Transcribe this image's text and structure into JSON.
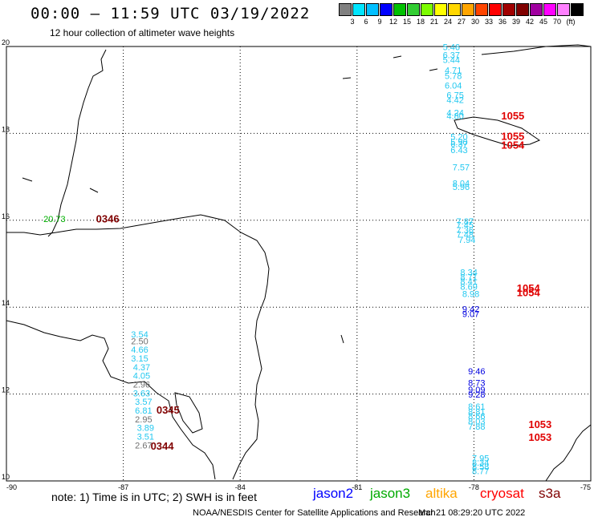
{
  "header": {
    "title": "00:00 – 11:59 UTC 03/19/2022",
    "subtitle": "12 hour collection of altimeter wave heights"
  },
  "legend": {
    "colors": [
      "#808080",
      "#00e5ff",
      "#00bfff",
      "#0000ff",
      "#00c000",
      "#32cd32",
      "#7cfc00",
      "#ffff00",
      "#ffd700",
      "#ffa500",
      "#ff4500",
      "#ff0000",
      "#a00000",
      "#800000",
      "#a000a0",
      "#ff00ff",
      "#ff80ff",
      "#000000"
    ],
    "labels": [
      "3",
      "6",
      "9",
      "12",
      "15",
      "18",
      "21",
      "24",
      "27",
      "30",
      "33",
      "36",
      "39",
      "42",
      "45",
      "70",
      "(ft)"
    ]
  },
  "axes": {
    "lon_ticks": [
      "-90",
      "-87",
      "-84",
      "-81",
      "-78",
      "-75"
    ],
    "lat_ticks": [
      "20",
      "18",
      "16",
      "14",
      "12",
      "10"
    ],
    "lon_range": [
      -90,
      -75
    ],
    "lat_range": [
      10,
      20
    ]
  },
  "observations": [
    {
      "lon": -78.8,
      "lat": 19.92,
      "text": "5.46",
      "color": "#22c8f0"
    },
    {
      "lon": -78.8,
      "lat": 19.73,
      "text": "6.37",
      "color": "#22c8f0"
    },
    {
      "lon": -78.8,
      "lat": 19.62,
      "text": "5.44",
      "color": "#22c8f0"
    },
    {
      "lon": -78.75,
      "lat": 19.38,
      "text": "4.71",
      "color": "#22c8f0"
    },
    {
      "lon": -78.75,
      "lat": 19.25,
      "text": "5.78",
      "color": "#22c8f0"
    },
    {
      "lon": -78.75,
      "lat": 19.03,
      "text": "6.04",
      "color": "#22c8f0"
    },
    {
      "lon": -78.7,
      "lat": 18.81,
      "text": "6.75",
      "color": "#22c8f0"
    },
    {
      "lon": -78.7,
      "lat": 18.7,
      "text": "4.42",
      "color": "#22c8f0"
    },
    {
      "lon": -78.7,
      "lat": 18.4,
      "text": "4.24",
      "color": "#22c8f0"
    },
    {
      "lon": -78.7,
      "lat": 18.33,
      "text": "4.80",
      "color": "#22c8f0"
    },
    {
      "lon": -78.6,
      "lat": 17.85,
      "text": "5.20",
      "color": "#22c8f0"
    },
    {
      "lon": -78.6,
      "lat": 17.73,
      "text": "5.90",
      "color": "#22c8f0"
    },
    {
      "lon": -78.6,
      "lat": 17.68,
      "text": "6.37",
      "color": "#22c8f0"
    },
    {
      "lon": -78.6,
      "lat": 17.55,
      "text": "6.43",
      "color": "#22c8f0"
    },
    {
      "lon": -78.55,
      "lat": 17.15,
      "text": "7.57",
      "color": "#22c8f0"
    },
    {
      "lon": -78.55,
      "lat": 16.78,
      "text": "8.04",
      "color": "#22c8f0"
    },
    {
      "lon": -78.55,
      "lat": 16.7,
      "text": "5.96",
      "color": "#22c8f0"
    },
    {
      "lon": -78.45,
      "lat": 15.9,
      "text": "7.87",
      "color": "#22c8f0"
    },
    {
      "lon": -78.45,
      "lat": 15.82,
      "text": "7.45",
      "color": "#22c8f0"
    },
    {
      "lon": -78.45,
      "lat": 15.7,
      "text": "7.36",
      "color": "#22c8f0"
    },
    {
      "lon": -78.45,
      "lat": 15.6,
      "text": "7.48",
      "color": "#22c8f0"
    },
    {
      "lon": -78.4,
      "lat": 15.48,
      "text": "7.94",
      "color": "#22c8f0"
    },
    {
      "lon": -78.35,
      "lat": 14.73,
      "text": "8.34",
      "color": "#22c8f0"
    },
    {
      "lon": -78.35,
      "lat": 14.62,
      "text": "8.71",
      "color": "#22c8f0"
    },
    {
      "lon": -78.35,
      "lat": 14.52,
      "text": "8.41",
      "color": "#22c8f0"
    },
    {
      "lon": -78.35,
      "lat": 14.4,
      "text": "8.69",
      "color": "#22c8f0"
    },
    {
      "lon": -78.3,
      "lat": 14.23,
      "text": "8.98",
      "color": "#22c8f0"
    },
    {
      "lon": -78.3,
      "lat": 13.88,
      "text": "9.42",
      "color": "#0000e0"
    },
    {
      "lon": -78.3,
      "lat": 13.77,
      "text": "9.07",
      "color": "#0000e0"
    },
    {
      "lon": -78.15,
      "lat": 12.45,
      "text": "9.46",
      "color": "#0000e0"
    },
    {
      "lon": -78.15,
      "lat": 12.19,
      "text": "8.73",
      "color": "#0000e0"
    },
    {
      "lon": -78.15,
      "lat": 12.03,
      "text": "9.09",
      "color": "#0000e0"
    },
    {
      "lon": -78.15,
      "lat": 11.92,
      "text": "9.28",
      "color": "#0000e0"
    },
    {
      "lon": -78.15,
      "lat": 11.64,
      "text": "8.61",
      "color": "#22c8f0"
    },
    {
      "lon": -78.15,
      "lat": 11.52,
      "text": "8.81",
      "color": "#22c8f0"
    },
    {
      "lon": -78.15,
      "lat": 11.42,
      "text": "8.66",
      "color": "#22c8f0"
    },
    {
      "lon": -78.15,
      "lat": 11.3,
      "text": "8.03",
      "color": "#22c8f0"
    },
    {
      "lon": -78.15,
      "lat": 11.18,
      "text": "7.88",
      "color": "#22c8f0"
    },
    {
      "lon": -78.05,
      "lat": 10.45,
      "text": "7.95",
      "color": "#22c8f0"
    },
    {
      "lon": -78.05,
      "lat": 10.35,
      "text": "8.34",
      "color": "#22c8f0"
    },
    {
      "lon": -78.05,
      "lat": 10.26,
      "text": "8.58",
      "color": "#22c8f0"
    },
    {
      "lon": -78.05,
      "lat": 10.16,
      "text": "8.77",
      "color": "#22c8f0"
    },
    {
      "lon": -86.8,
      "lat": 13.3,
      "text": "3.54",
      "color": "#22c8f0"
    },
    {
      "lon": -86.8,
      "lat": 13.15,
      "text": "2.50",
      "color": "#707070"
    },
    {
      "lon": -86.8,
      "lat": 12.95,
      "text": "4.66",
      "color": "#22c8f0"
    },
    {
      "lon": -86.8,
      "lat": 12.75,
      "text": "3.15",
      "color": "#22c8f0"
    },
    {
      "lon": -86.75,
      "lat": 12.55,
      "text": "4.37",
      "color": "#22c8f0"
    },
    {
      "lon": -86.75,
      "lat": 12.35,
      "text": "4.05",
      "color": "#22c8f0"
    },
    {
      "lon": -86.75,
      "lat": 12.15,
      "text": "2.96",
      "color": "#707070"
    },
    {
      "lon": -86.75,
      "lat": 11.95,
      "text": "3.63",
      "color": "#22c8f0"
    },
    {
      "lon": -86.7,
      "lat": 11.75,
      "text": "3.57",
      "color": "#22c8f0"
    },
    {
      "lon": -86.7,
      "lat": 11.55,
      "text": "6.81",
      "color": "#22c8f0"
    },
    {
      "lon": -86.7,
      "lat": 11.35,
      "text": "2.95",
      "color": "#707070"
    },
    {
      "lon": -86.65,
      "lat": 11.15,
      "text": "3.89",
      "color": "#22c8f0"
    },
    {
      "lon": -86.65,
      "lat": 10.95,
      "text": "3.51",
      "color": "#22c8f0"
    },
    {
      "lon": -86.7,
      "lat": 10.75,
      "text": "2.67",
      "color": "#707070"
    },
    {
      "lon": -89.05,
      "lat": 15.96,
      "text": "20.73",
      "color": "#00b000"
    }
  ],
  "passes": [
    {
      "lon": -77.3,
      "lat": 18.32,
      "text": "1055",
      "color": "#e00000"
    },
    {
      "lon": -77.3,
      "lat": 17.85,
      "text": "1055",
      "color": "#e00000"
    },
    {
      "lon": -77.3,
      "lat": 17.65,
      "text": "1054",
      "color": "#e00000"
    },
    {
      "lon": -76.9,
      "lat": 14.35,
      "text": "1054",
      "color": "#e00000"
    },
    {
      "lon": -76.9,
      "lat": 14.25,
      "text": "1054",
      "color": "#e00000"
    },
    {
      "lon": -76.6,
      "lat": 11.22,
      "text": "1053",
      "color": "#e00000"
    },
    {
      "lon": -76.6,
      "lat": 10.92,
      "text": "1053",
      "color": "#e00000"
    },
    {
      "lon": -87.7,
      "lat": 15.95,
      "text": "0346",
      "color": "#800000"
    },
    {
      "lon": -86.15,
      "lat": 11.55,
      "text": "0345",
      "color": "#800000"
    },
    {
      "lon": -86.3,
      "lat": 10.72,
      "text": "0344",
      "color": "#800000"
    }
  ],
  "footer": {
    "note": "note: 1) Time is in UTC; 2) SWH is in feet",
    "satellites": [
      {
        "name": "jason2",
        "color": "#0000ff"
      },
      {
        "name": "jason3",
        "color": "#00aa00"
      },
      {
        "name": "altika",
        "color": "#ffa500"
      },
      {
        "name": "cryosat",
        "color": "#ff0000"
      },
      {
        "name": "s3a",
        "color": "#800000"
      }
    ],
    "credit": "NOAA/NESDIS Center for Satellite Applications and Research",
    "timestamp": "Mar 21 08:29:20 UTC 2022"
  }
}
